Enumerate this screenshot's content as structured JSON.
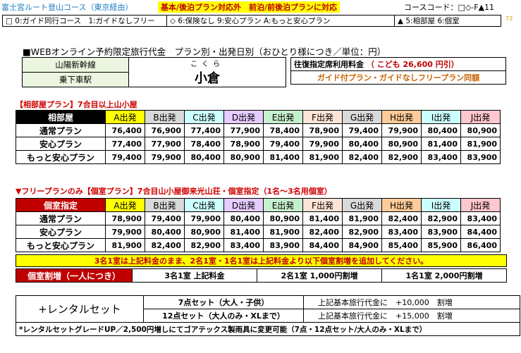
{
  "header": {
    "route": "富士宮ルート登山コース（東京経由）",
    "plan_note": "基本/後泊プラン対応外　前泊/前後泊プランに対応",
    "course_code": "コースコード：□◇-F▲11",
    "page_number": "73"
  },
  "legend": {
    "guide": "□ 0:ガイド同行コース　1:ガイドなしフリー",
    "insurance": "◇ 6:保険なし 9:安心プラン A:もっと安心プラン",
    "room": "▲ 5:相部屋 6:個室"
  },
  "title": "■WEBオンライン予約限定旅行代金　プラン別・出発日別（おひとり様につき／単位：円）",
  "station": {
    "line": "山陽新幹線",
    "board_label": "乗下車駅",
    "furigana": "こくら",
    "name": "小倉"
  },
  "fare": {
    "label": "往復指定席利用料金",
    "child": "（ こども  26,600  円引）",
    "note": "ガイド付プラン・ガイドなしフリープラン同額"
  },
  "shared_room": {
    "section_title": "【相部屋プラン】7合目以上山小屋",
    "header_label": "相部屋",
    "columns": [
      "A出発",
      "B出発",
      "C出発",
      "D出発",
      "E出発",
      "F出発",
      "G出発",
      "H出発",
      "I出発",
      "J出発"
    ],
    "column_colors": [
      "#ffff00",
      "#d9d9d9",
      "#ccffff",
      "#e6ccff",
      "#c6efce",
      "#fce4d6",
      "#d9d9d9",
      "#ffcc99",
      "#ccffff",
      "#ffc7ce"
    ],
    "rows": [
      {
        "label": "通常プラン",
        "values": [
          "76,400",
          "76,900",
          "77,400",
          "77,900",
          "78,400",
          "78,900",
          "79,400",
          "79,900",
          "80,400",
          "80,900"
        ]
      },
      {
        "label": "安心プラン",
        "values": [
          "77,400",
          "77,900",
          "78,400",
          "78,900",
          "79,400",
          "79,900",
          "80,400",
          "80,900",
          "81,400",
          "81,900"
        ]
      },
      {
        "label": "もっと安心プラン",
        "values": [
          "79,400",
          "79,900",
          "80,400",
          "80,900",
          "81,400",
          "81,900",
          "82,400",
          "82,900",
          "83,400",
          "83,900"
        ]
      }
    ]
  },
  "private_room": {
    "section_title": "▼フリープランのみ【個室プラン】7合目山小屋御来光山荘・個室指定（1名～3名用個室）",
    "header_label": "個室指定",
    "columns": [
      "A出発",
      "B出発",
      "C出発",
      "D出発",
      "E出発",
      "F出発",
      "G出発",
      "H出発",
      "I出発",
      "J出発"
    ],
    "rows": [
      {
        "label": "通常プラン",
        "values": [
          "78,900",
          "79,400",
          "79,900",
          "80,400",
          "80,900",
          "81,400",
          "81,900",
          "82,400",
          "82,900",
          "83,400"
        ]
      },
      {
        "label": "安心プラン",
        "values": [
          "79,900",
          "80,400",
          "80,900",
          "81,400",
          "81,900",
          "82,400",
          "82,900",
          "83,400",
          "83,900",
          "84,400"
        ]
      },
      {
        "label": "もっと安心プラン",
        "values": [
          "81,900",
          "82,400",
          "82,900",
          "83,400",
          "83,900",
          "84,400",
          "84,900",
          "85,400",
          "85,900",
          "86,400"
        ]
      }
    ]
  },
  "note_3people": "3名1室は上記料金のまま、2名1室・1名1室は上記料金より以下個室割増を追加してください。",
  "single_surcharge": {
    "label": "個室割増（一人につき）",
    "three": "3名1室 上記料金",
    "two": "2名1室  1,000円割増",
    "one": "1名1室  2,000円割増"
  },
  "rental": {
    "label": "+レンタルセット",
    "seven": "7点セット（大人・子供）",
    "seven_text": "上記基本旅行代金に　+10,000　割増",
    "twelve": "12点セット（大人のみ・XLまで）",
    "twelve_text": "上記基本旅行代金に　+15,000　割増",
    "note": "*レンタルセットグレードUP／2,500円増しにてゴアテックス製雨具に変更可能（7点・12点セット/大人のみ・XLまで）"
  }
}
